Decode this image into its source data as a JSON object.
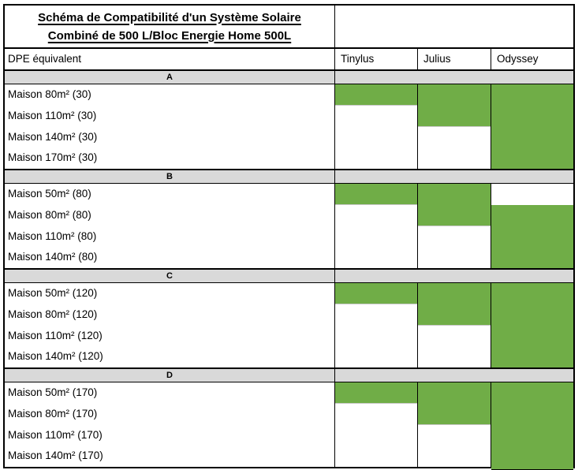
{
  "title": {
    "line1": "Schéma de Compatibilité d'un Système Solaire",
    "line2": "Combiné de 500 L/Bloc Energie Home 500L"
  },
  "header": {
    "dpe": "DPE équivalent",
    "products": [
      "Tinylus",
      "Julius",
      "Odyssey"
    ]
  },
  "colors": {
    "compatible_green": "#70ad47",
    "section_band_gray": "#d9d9d9",
    "border_black": "#000000"
  },
  "chart_data": {
    "type": "table",
    "title": "Schéma de Compatibilité d'un Système Solaire Combiné de 500 L/Bloc Energie Home 500L",
    "row_header": "DPE équivalent",
    "columns": [
      "Tinylus",
      "Julius",
      "Odyssey"
    ],
    "cell_encoding": "1 = green (compatible), 0 = white (not compatible)",
    "sections": [
      {
        "label": "A",
        "rows": [
          {
            "label": "Maison 80m² (30)",
            "compat": [
              1,
              1,
              1
            ]
          },
          {
            "label": "Maison 110m² (30)",
            "compat": [
              0,
              1,
              1
            ]
          },
          {
            "label": "Maison 140m² (30)",
            "compat": [
              0,
              0,
              1
            ]
          },
          {
            "label": "Maison 170m² (30)",
            "compat": [
              0,
              0,
              1
            ]
          }
        ]
      },
      {
        "label": "B",
        "rows": [
          {
            "label": "Maison 50m² (80)",
            "compat": [
              1,
              1,
              0
            ]
          },
          {
            "label": "Maison 80m² (80)",
            "compat": [
              0,
              1,
              1
            ]
          },
          {
            "label": "Maison 110m² (80)",
            "compat": [
              0,
              0,
              1
            ]
          },
          {
            "label": "Maison 140m² (80)",
            "compat": [
              0,
              0,
              1
            ]
          }
        ]
      },
      {
        "label": "C",
        "rows": [
          {
            "label": "Maison 50m² (120)",
            "compat": [
              1,
              1,
              1
            ]
          },
          {
            "label": "Maison 80m² (120)",
            "compat": [
              0,
              1,
              1
            ]
          },
          {
            "label": "Maison 110m² (120)",
            "compat": [
              0,
              0,
              1
            ]
          },
          {
            "label": "Maison 140m² (120)",
            "compat": [
              0,
              0,
              1
            ]
          }
        ]
      },
      {
        "label": "D",
        "rows": [
          {
            "label": "Maison 50m² (170)",
            "compat": [
              1,
              1,
              1
            ]
          },
          {
            "label": "Maison 80m² (170)",
            "compat": [
              0,
              1,
              1
            ]
          },
          {
            "label": "Maison 110m² (170)",
            "compat": [
              0,
              0,
              1
            ]
          },
          {
            "label": "Maison 140m² (170)",
            "compat": [
              0,
              0,
              1
            ]
          }
        ]
      }
    ]
  }
}
